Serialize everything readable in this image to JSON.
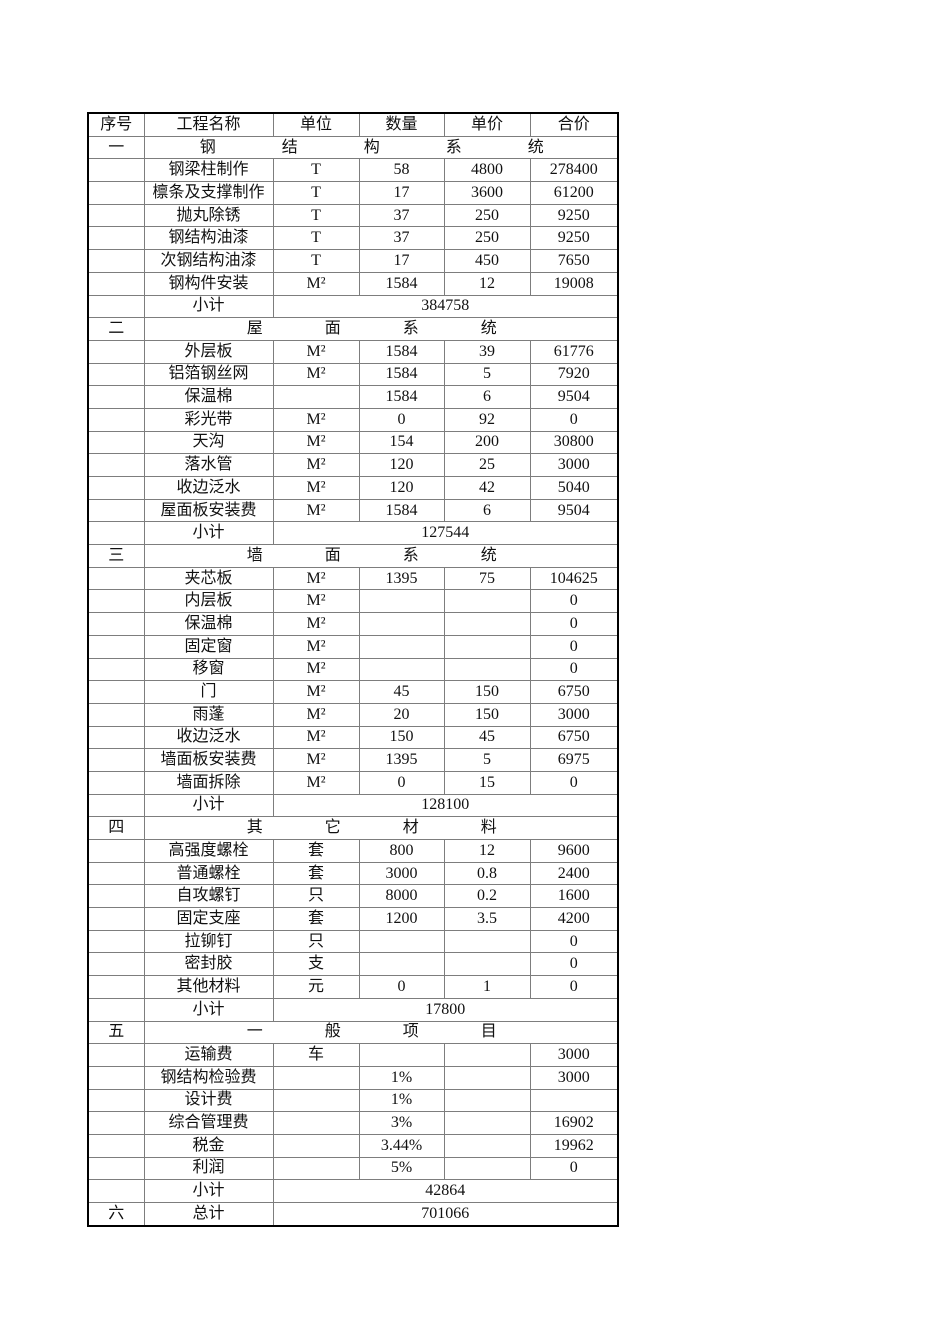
{
  "page": {
    "background_color": "#ffffff",
    "text_color": "#111111",
    "border_outer_color": "#000000",
    "border_inner_color": "#7d7d7d"
  },
  "table": {
    "columns": [
      "序号",
      "工程名称",
      "单位",
      "数量",
      "单价",
      "合价"
    ],
    "subtotal_label": "小计",
    "sections": [
      {
        "no": "一",
        "title": "钢结构系统",
        "items": [
          {
            "name": "钢梁柱制作",
            "unit": "T",
            "qty": "58",
            "price": "4800",
            "total": "278400"
          },
          {
            "name": "檩条及支撑制作",
            "unit": "T",
            "qty": "17",
            "price": "3600",
            "total": "61200"
          },
          {
            "name": "抛丸除锈",
            "unit": "T",
            "qty": "37",
            "price": "250",
            "total": "9250"
          },
          {
            "name": "钢结构油漆",
            "unit": "T",
            "qty": "37",
            "price": "250",
            "total": "9250"
          },
          {
            "name": "次钢结构油漆",
            "unit": "T",
            "qty": "17",
            "price": "450",
            "total": "7650"
          },
          {
            "name": "钢构件安装",
            "unit": "M²",
            "qty": "1584",
            "price": "12",
            "total": "19008"
          }
        ],
        "subtotal": "384758"
      },
      {
        "no": "二",
        "title": "屋面系统",
        "items": [
          {
            "name": "外层板",
            "unit": "M²",
            "qty": "1584",
            "price": "39",
            "total": "61776"
          },
          {
            "name": "铝箔钢丝网",
            "unit": "M²",
            "qty": "1584",
            "price": "5",
            "total": "7920"
          },
          {
            "name": "保温棉",
            "unit": "",
            "qty": "1584",
            "price": "6",
            "total": "9504"
          },
          {
            "name": "彩光带",
            "unit": "M²",
            "qty": "0",
            "price": "92",
            "total": "0"
          },
          {
            "name": "天沟",
            "unit": "M²",
            "qty": "154",
            "price": "200",
            "total": "30800"
          },
          {
            "name": "落水管",
            "unit": "M²",
            "qty": "120",
            "price": "25",
            "total": "3000"
          },
          {
            "name": "收边泛水",
            "unit": "M²",
            "qty": "120",
            "price": "42",
            "total": "5040"
          },
          {
            "name": "屋面板安装费",
            "unit": "M²",
            "qty": "1584",
            "price": "6",
            "total": "9504"
          }
        ],
        "subtotal": "127544"
      },
      {
        "no": "三",
        "title": "墙面系统",
        "items": [
          {
            "name": "夹芯板",
            "unit": "M²",
            "qty": "1395",
            "price": "75",
            "total": "104625"
          },
          {
            "name": "内层板",
            "unit": "M²",
            "qty": "",
            "price": "",
            "total": "0"
          },
          {
            "name": "保温棉",
            "unit": "M²",
            "qty": "",
            "price": "",
            "total": "0"
          },
          {
            "name": "固定窗",
            "unit": "M²",
            "qty": "",
            "price": "",
            "total": "0"
          },
          {
            "name": "移窗",
            "unit": "M²",
            "qty": "",
            "price": "",
            "total": "0"
          },
          {
            "name": "门",
            "unit": "M²",
            "qty": "45",
            "price": "150",
            "total": "6750"
          },
          {
            "name": "雨蓬",
            "unit": "M²",
            "qty": "20",
            "price": "150",
            "total": "3000"
          },
          {
            "name": "收边泛水",
            "unit": "M²",
            "qty": "150",
            "price": "45",
            "total": "6750"
          },
          {
            "name": "墙面板安装费",
            "unit": "M²",
            "qty": "1395",
            "price": "5",
            "total": "6975"
          },
          {
            "name": "墙面拆除",
            "unit": "M²",
            "qty": "0",
            "price": "15",
            "total": "0"
          }
        ],
        "subtotal": "128100"
      },
      {
        "no": "四",
        "title": "其它材料",
        "items": [
          {
            "name": "高强度螺栓",
            "unit": "套",
            "qty": "800",
            "price": "12",
            "total": "9600"
          },
          {
            "name": "普通螺栓",
            "unit": "套",
            "qty": "3000",
            "price": "0.8",
            "total": "2400"
          },
          {
            "name": "自攻螺钉",
            "unit": "只",
            "qty": "8000",
            "price": "0.2",
            "total": "1600"
          },
          {
            "name": "固定支座",
            "unit": "套",
            "qty": "1200",
            "price": "3.5",
            "total": "4200"
          },
          {
            "name": "拉铆钉",
            "unit": "只",
            "qty": "",
            "price": "",
            "total": "0"
          },
          {
            "name": "密封胶",
            "unit": "支",
            "qty": "",
            "price": "",
            "total": "0"
          },
          {
            "name": "其他材料",
            "unit": "元",
            "qty": "0",
            "price": "1",
            "total": "0"
          }
        ],
        "subtotal": "17800"
      },
      {
        "no": "五",
        "title": "一般项目",
        "items": [
          {
            "name": "运输费",
            "unit": "车",
            "qty": "",
            "price": "",
            "total": "3000"
          },
          {
            "name": "钢结构检验费",
            "unit": "",
            "qty": "1%",
            "price": "",
            "total": "3000"
          },
          {
            "name": "设计费",
            "unit": "",
            "qty": "1%",
            "price": "",
            "total": ""
          },
          {
            "name": "综合管理费",
            "unit": "",
            "qty": "3%",
            "price": "",
            "total": "16902"
          },
          {
            "name": "税金",
            "unit": "",
            "qty": "3.44%",
            "price": "",
            "total": "19962"
          },
          {
            "name": "利润",
            "unit": "",
            "qty": "5%",
            "price": "",
            "total": "0"
          }
        ],
        "subtotal": "42864"
      }
    ],
    "total_row": {
      "no": "六",
      "label": "总计",
      "value": "701066"
    }
  }
}
